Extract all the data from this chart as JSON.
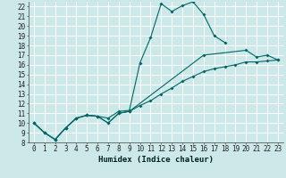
{
  "bg_color": "#cce8e8",
  "grid_color": "#ffffff",
  "line_color": "#006666",
  "xlabel": "Humidex (Indice chaleur)",
  "xlim": [
    -0.5,
    23.5
  ],
  "ylim": [
    8,
    22.5
  ],
  "xticks": [
    0,
    1,
    2,
    3,
    4,
    5,
    6,
    7,
    8,
    9,
    10,
    11,
    12,
    13,
    14,
    15,
    16,
    17,
    18,
    19,
    20,
    21,
    22,
    23
  ],
  "yticks": [
    8,
    9,
    10,
    11,
    12,
    13,
    14,
    15,
    16,
    17,
    18,
    19,
    20,
    21,
    22
  ],
  "line1_x": [
    0,
    1,
    2,
    3,
    4,
    5,
    6,
    7,
    8,
    9,
    10,
    11,
    12,
    13,
    14,
    15,
    16,
    17,
    18
  ],
  "line1_y": [
    10.0,
    9.0,
    8.3,
    9.5,
    10.5,
    10.8,
    10.7,
    10.5,
    11.2,
    11.3,
    16.2,
    18.8,
    22.3,
    21.5,
    22.1,
    22.5,
    21.2,
    19.0,
    18.3
  ],
  "line2_x": [
    0,
    1,
    2,
    3,
    4,
    5,
    6,
    7,
    8,
    9,
    16,
    20,
    21,
    22,
    23
  ],
  "line2_y": [
    10.0,
    9.0,
    8.3,
    9.5,
    10.5,
    10.8,
    10.7,
    10.0,
    11.0,
    11.2,
    17.0,
    17.5,
    16.8,
    17.0,
    16.5
  ],
  "line3_x": [
    0,
    1,
    2,
    3,
    4,
    5,
    6,
    7,
    8,
    9,
    10,
    11,
    12,
    13,
    14,
    15,
    16,
    17,
    18,
    19,
    20,
    21,
    22,
    23
  ],
  "line3_y": [
    10.0,
    9.0,
    8.3,
    9.5,
    10.5,
    10.8,
    10.7,
    10.0,
    11.0,
    11.2,
    11.8,
    12.3,
    13.0,
    13.6,
    14.3,
    14.8,
    15.3,
    15.6,
    15.8,
    16.0,
    16.3,
    16.3,
    16.4,
    16.5
  ],
  "tick_fontsize": 5.5,
  "xlabel_fontsize": 6.5
}
